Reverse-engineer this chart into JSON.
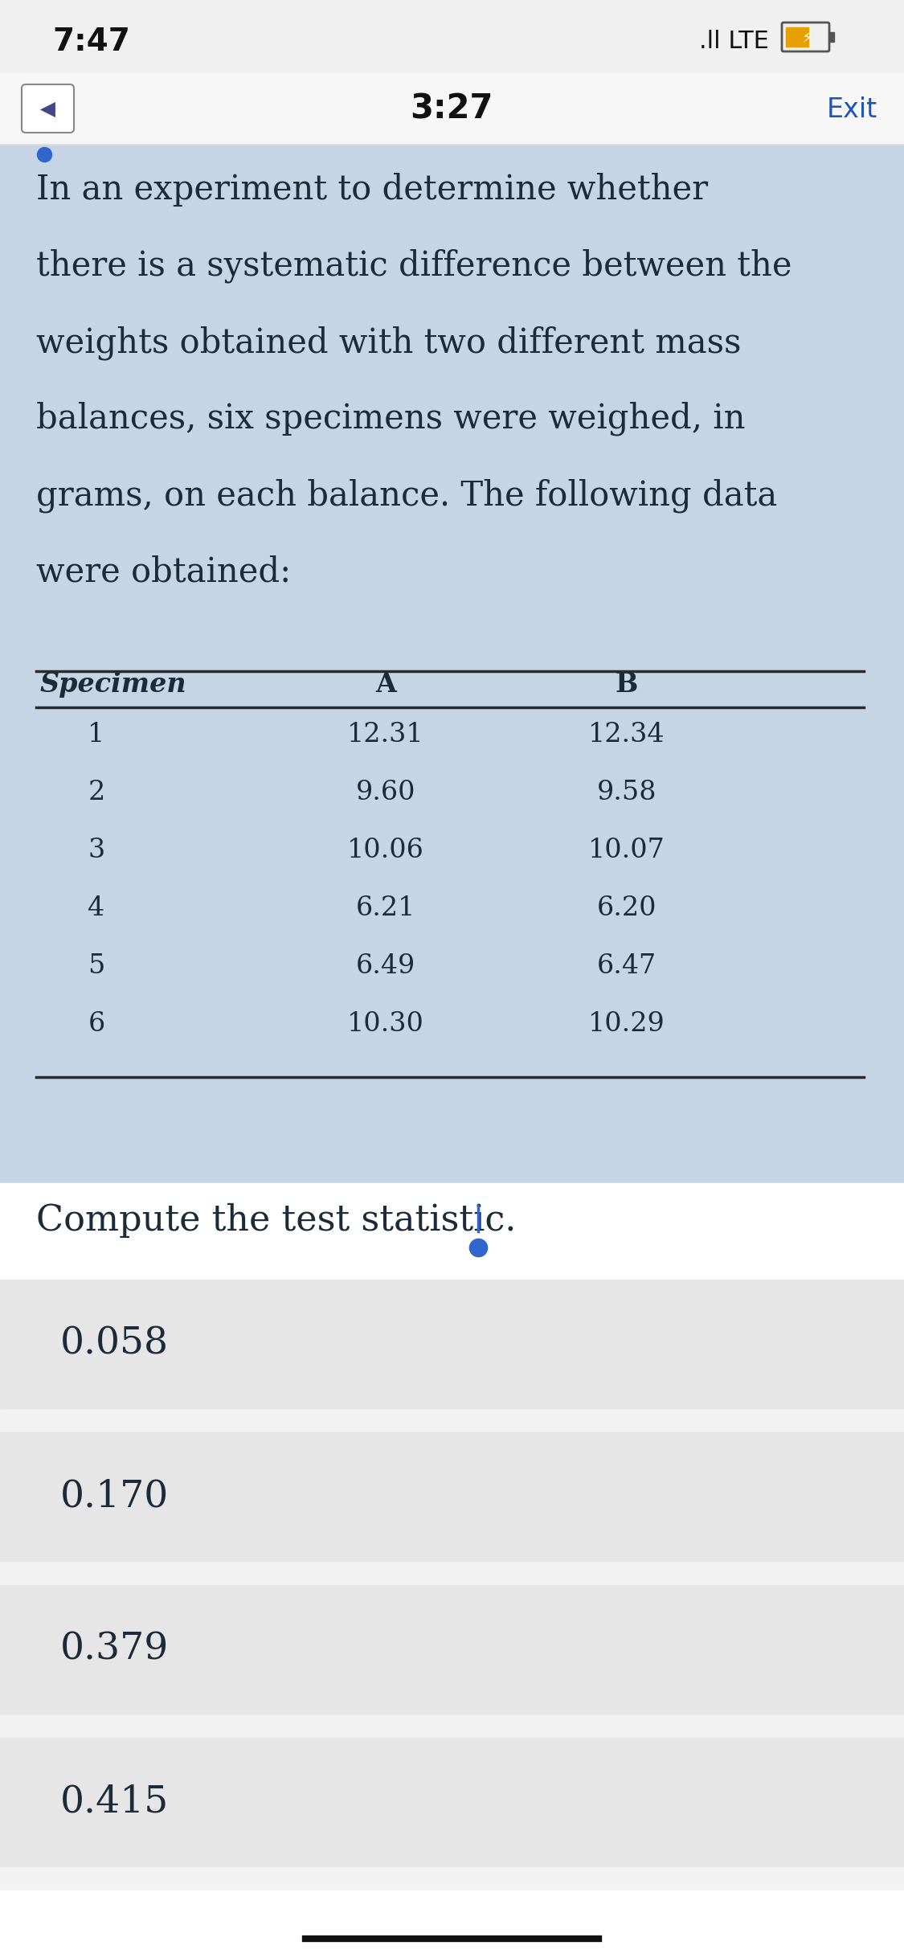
{
  "status_bar_time": "7:47",
  "status_bar_right": ".ll LTE",
  "nav_time": "3:27",
  "nav_exit": "Exit",
  "question_text_lines": [
    "In an experiment to determine whether",
    "there is a systematic difference between the",
    "weights obtained with two different mass",
    "balances, six specimens were weighed, in",
    "grams, on each balance. The following data",
    "were obtained:"
  ],
  "table_headers": [
    "Specimen",
    "A",
    "B"
  ],
  "table_data": [
    [
      "1",
      "12.31",
      "12.34"
    ],
    [
      "2",
      "9.60",
      "9.58"
    ],
    [
      "3",
      "10.06",
      "10.07"
    ],
    [
      "4",
      "6.21",
      "6.20"
    ],
    [
      "5",
      "6.49",
      "6.47"
    ],
    [
      "6",
      "10.30",
      "10.29"
    ]
  ],
  "question2": "Compute the test statistic.",
  "options": [
    "0.058",
    "0.170",
    "0.379",
    "0.415"
  ],
  "bg_color_main": "#f2f2f2",
  "bg_color_question": "#c5d5e5",
  "bg_color_option": "#e6e6e6",
  "bg_color_nav": "#f7f7f7",
  "text_color_dark": "#1c2b3a",
  "text_color_blue": "#2255bb",
  "text_color_black": "#111111",
  "cursor_color": "#3366cc",
  "table_line_color": "#2a2a2a",
  "bottom_bar_color": "#111111",
  "nav_line_color": "#dddddd",
  "status_bg": "#f0f0f0"
}
